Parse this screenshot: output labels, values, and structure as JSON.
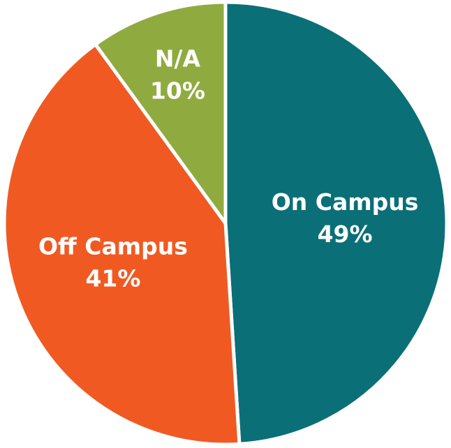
{
  "chart_data": {
    "type": "pie",
    "categories": [
      "On Campus",
      "Off Campus",
      "N/A"
    ],
    "values": [
      49,
      41,
      10
    ],
    "value_labels": [
      "49%",
      "41%",
      "10%"
    ],
    "colors": [
      "#0b6f77",
      "#f05a22",
      "#8fab3f"
    ]
  }
}
